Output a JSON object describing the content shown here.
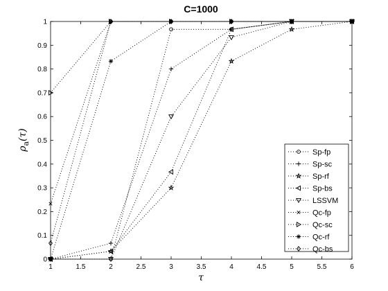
{
  "chart_data": {
    "type": "line",
    "title": "C=1000",
    "xlabel": "τ",
    "ylabel_main": "ρ",
    "ylabel_sub": "a",
    "ylabel_arg": "(τ)",
    "xlim": [
      1,
      6
    ],
    "ylim": [
      0,
      1
    ],
    "xticks": [
      "1",
      "1.5",
      "2",
      "2.5",
      "3",
      "3.5",
      "4",
      "4.5",
      "5",
      "5.5",
      "6"
    ],
    "yticks": [
      "0",
      "0.1",
      "0.2",
      "0.3",
      "0.4",
      "0.5",
      "0.6",
      "0.7",
      "0.8",
      "0.9",
      "1"
    ],
    "grid": false,
    "legend_position": "bottom-right",
    "series": [
      {
        "name": "Sp-fp",
        "marker": "circle",
        "x": [
          1,
          2,
          3,
          4,
          5,
          6
        ],
        "y": [
          0,
          0,
          0.967,
          0.967,
          1,
          1
        ]
      },
      {
        "name": "Sp-sc",
        "marker": "plus",
        "x": [
          1,
          2,
          3,
          4,
          5,
          6
        ],
        "y": [
          0,
          0.067,
          0.8,
          0.967,
          1,
          1
        ]
      },
      {
        "name": "Sp-rf",
        "marker": "pentagram",
        "x": [
          1,
          2,
          3,
          4,
          5,
          6
        ],
        "y": [
          0,
          0.033,
          0.3,
          0.833,
          0.967,
          1
        ]
      },
      {
        "name": "Sp-bs",
        "marker": "triangle-left",
        "x": [
          1,
          2,
          3,
          4,
          5,
          6
        ],
        "y": [
          0,
          0.033,
          0.367,
          0.967,
          1,
          1
        ]
      },
      {
        "name": "LSSVM",
        "marker": "triangle-down",
        "x": [
          1,
          2,
          3,
          4,
          5,
          6
        ],
        "y": [
          0,
          0,
          0.6,
          0.933,
          1,
          1
        ]
      },
      {
        "name": "Qc-fp",
        "marker": "x",
        "x": [
          1,
          2,
          3,
          4,
          5,
          6
        ],
        "y": [
          0.233,
          1,
          1,
          1,
          1,
          1
        ]
      },
      {
        "name": "Qc-sc",
        "marker": "triangle-right",
        "x": [
          1,
          2,
          3,
          4,
          5,
          6
        ],
        "y": [
          0.7,
          1,
          1,
          1,
          1,
          1
        ]
      },
      {
        "name": "Qc-rf",
        "marker": "asterisk",
        "x": [
          1,
          2,
          3,
          4,
          5,
          6
        ],
        "y": [
          0,
          0.833,
          1,
          1,
          1,
          1
        ]
      },
      {
        "name": "Qc-bs",
        "marker": "diamond",
        "x": [
          1,
          2,
          3,
          4,
          5,
          6
        ],
        "y": [
          0.067,
          1,
          1,
          1,
          1,
          1
        ]
      }
    ]
  }
}
